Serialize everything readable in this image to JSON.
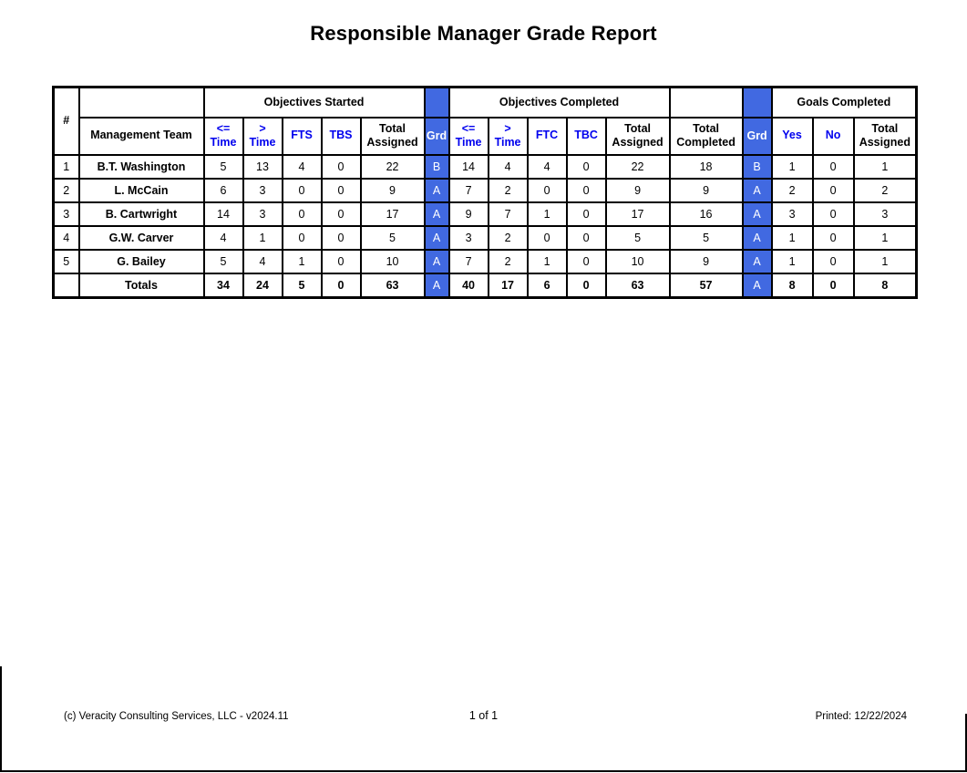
{
  "title": "Responsible Manager Grade Report",
  "colors": {
    "header_text_blue": "#0000EE",
    "grade_cell_fill": "#4169E1",
    "management_team_divider_blue": "#4472C4"
  },
  "table": {
    "group_headers": [
      "Objectives Started",
      "Objectives Completed",
      "Goals Completed"
    ],
    "column_headers": {
      "num": "#",
      "team": "Management Team",
      "le_time": "<=\nTime",
      "gt_time": ">\nTime",
      "fts": "FTS",
      "tbs": "TBS",
      "ftc": "FTC",
      "tbc": "TBC",
      "total_assigned": "Total\nAssigned",
      "total_completed": "Total\nCompleted",
      "grd": "Grd",
      "yes": "Yes",
      "no": "No"
    },
    "rows": [
      {
        "num": "1",
        "name": "B.T. Washington",
        "s": [
          "5",
          "13",
          "4",
          "0",
          "22"
        ],
        "sg": "B",
        "c": [
          "14",
          "4",
          "4",
          "0",
          "22",
          "18"
        ],
        "cg": "B",
        "g": [
          "1",
          "0",
          "1"
        ]
      },
      {
        "num": "2",
        "name": "L. McCain",
        "s": [
          "6",
          "3",
          "0",
          "0",
          "9"
        ],
        "sg": "A",
        "c": [
          "7",
          "2",
          "0",
          "0",
          "9",
          "9"
        ],
        "cg": "A",
        "g": [
          "2",
          "0",
          "2"
        ]
      },
      {
        "num": "3",
        "name": "B. Cartwright",
        "s": [
          "14",
          "3",
          "0",
          "0",
          "17"
        ],
        "sg": "A",
        "c": [
          "9",
          "7",
          "1",
          "0",
          "17",
          "16"
        ],
        "cg": "A",
        "g": [
          "3",
          "0",
          "3"
        ]
      },
      {
        "num": "4",
        "name": "G.W. Carver",
        "s": [
          "4",
          "1",
          "0",
          "0",
          "5"
        ],
        "sg": "A",
        "c": [
          "3",
          "2",
          "0",
          "0",
          "5",
          "5"
        ],
        "cg": "A",
        "g": [
          "1",
          "0",
          "1"
        ]
      },
      {
        "num": "5",
        "name": "G. Bailey",
        "s": [
          "5",
          "4",
          "1",
          "0",
          "10"
        ],
        "sg": "A",
        "c": [
          "7",
          "2",
          "1",
          "0",
          "10",
          "9"
        ],
        "cg": "A",
        "g": [
          "1",
          "0",
          "1"
        ]
      }
    ],
    "totals": {
      "label": "Totals",
      "s": [
        "34",
        "24",
        "5",
        "0",
        "63"
      ],
      "sg": "A",
      "c": [
        "40",
        "17",
        "6",
        "0",
        "63",
        "57"
      ],
      "cg": "A",
      "g": [
        "8",
        "0",
        "8"
      ]
    }
  },
  "footer": {
    "left": "(c) Veracity Consulting Services, LLC - v2024.11",
    "center": "1 of 1",
    "right": "Printed: 12/22/2024"
  }
}
